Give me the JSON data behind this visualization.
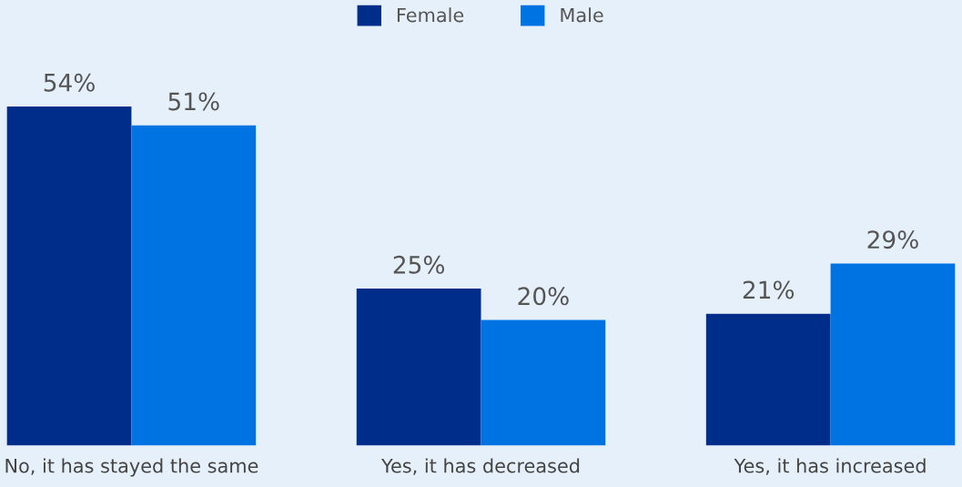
{
  "chart_data": {
    "type": "bar",
    "categories": [
      "No, it has stayed the same",
      "Yes, it has decreased",
      "Yes, it has increased"
    ],
    "series": [
      {
        "name": "Female",
        "color": "#002d8a",
        "values": [
          54,
          25,
          21
        ],
        "value_labels": [
          "54%",
          "25%",
          "21%"
        ]
      },
      {
        "name": "Male",
        "color": "#0073e3",
        "values": [
          51,
          20,
          29
        ],
        "value_labels": [
          "51%",
          "20%",
          "29%"
        ]
      }
    ],
    "legend": "top",
    "grid": false
  }
}
